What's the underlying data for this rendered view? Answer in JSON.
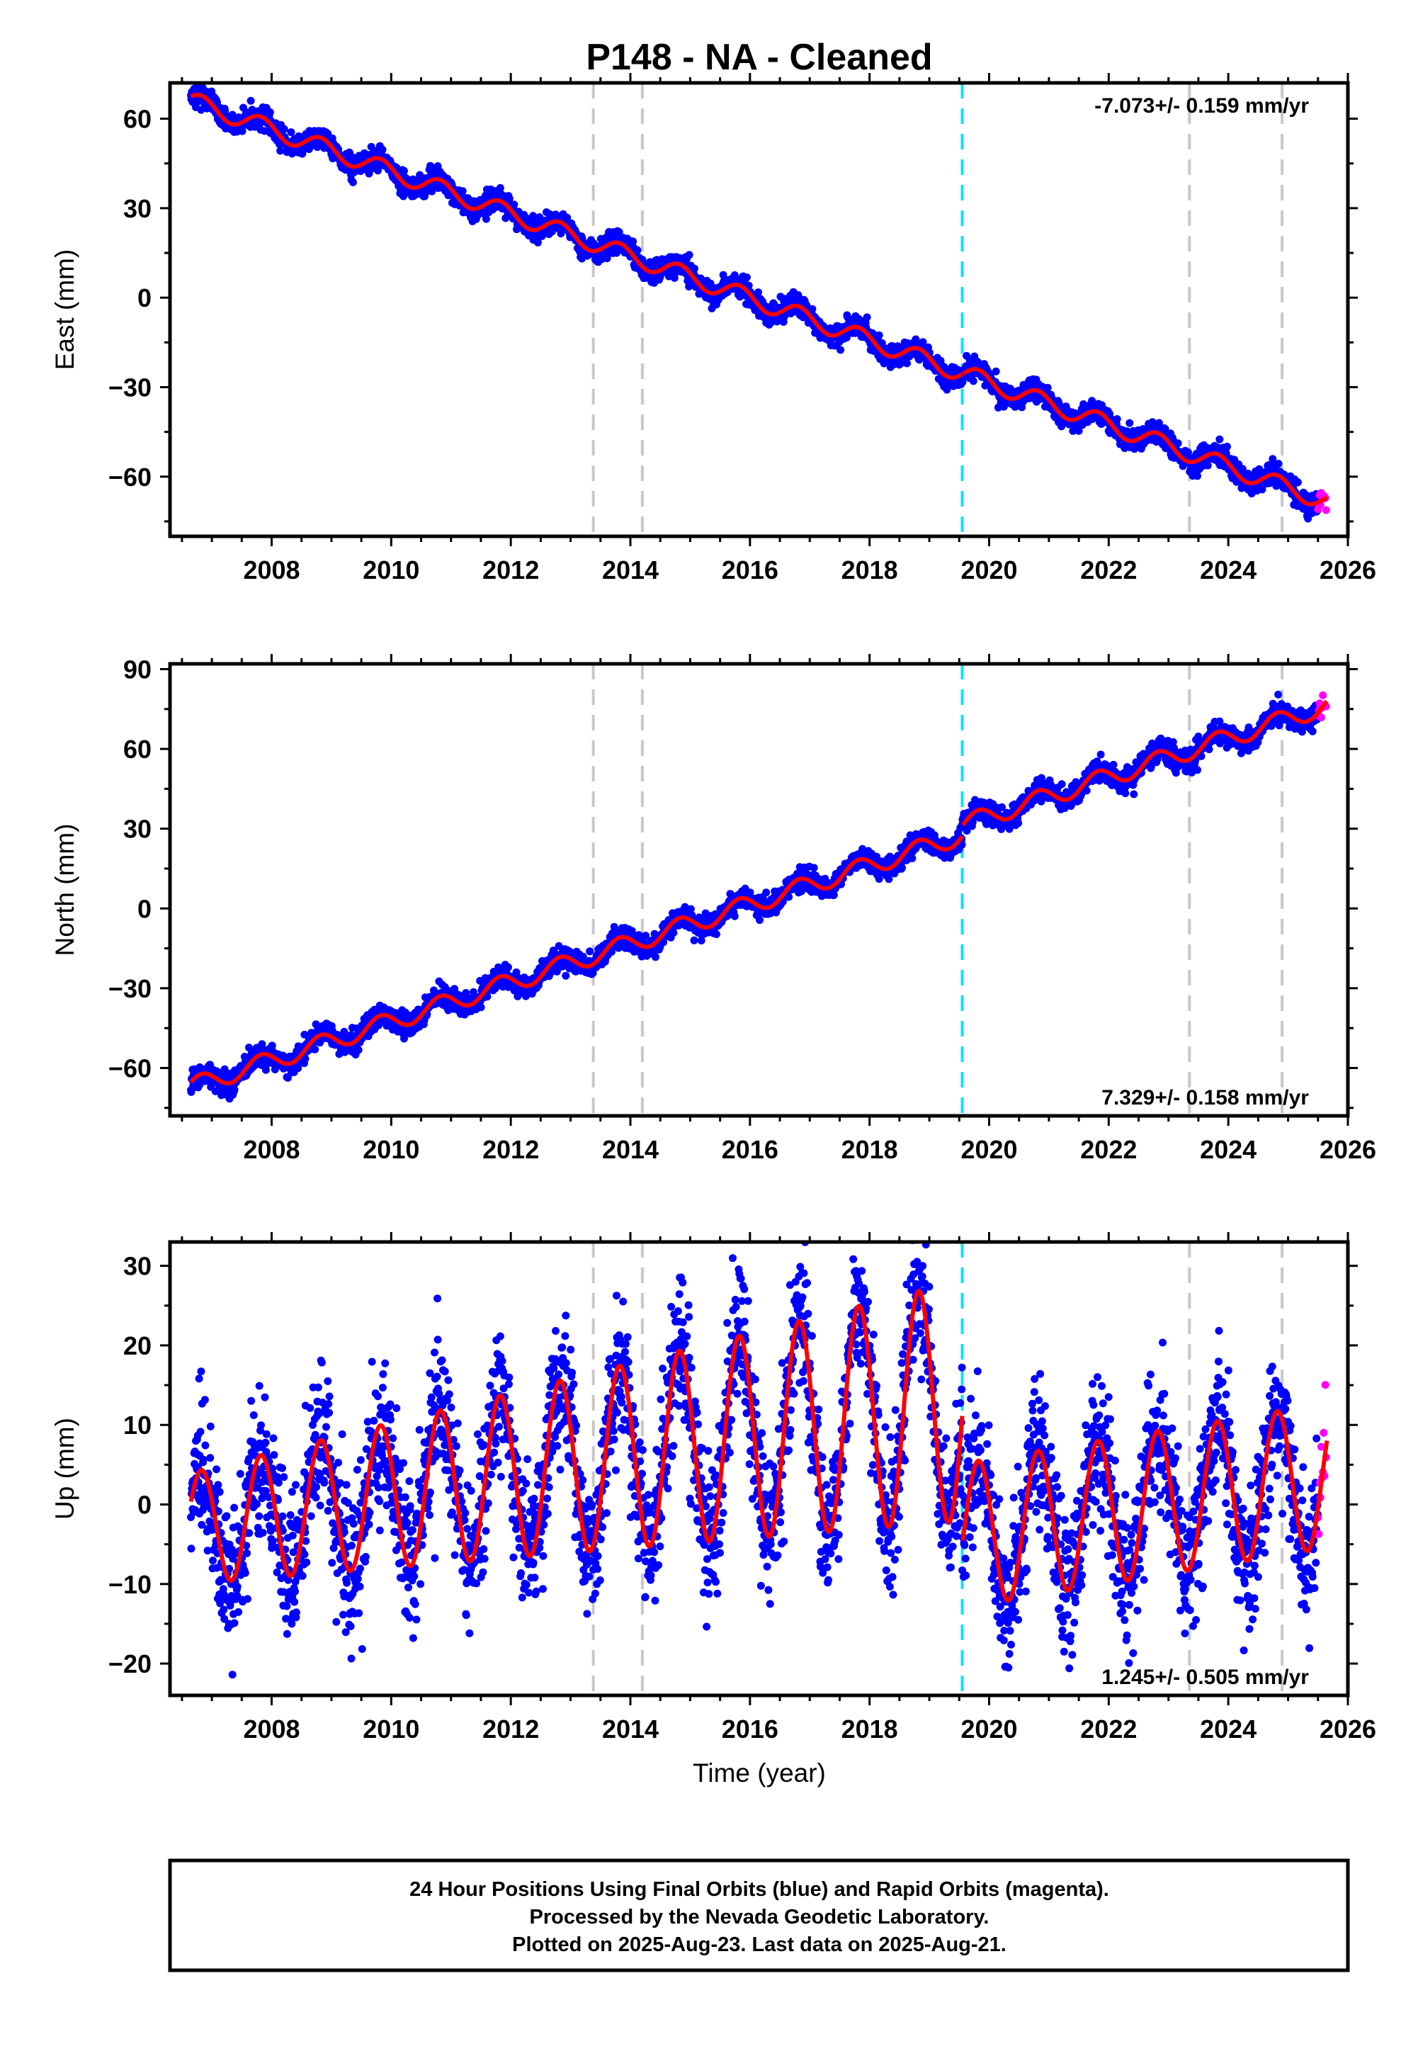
{
  "title": "P148  - NA - Cleaned",
  "colors": {
    "final_orbits": "#0000ff",
    "rapid_orbits": "#ff00ff",
    "model": "#ff0000",
    "event_line": "#c8c8c8",
    "equipment_line": "#00e5ff"
  },
  "x_axis": {
    "label": "Time (year)",
    "ticks": [
      "2008",
      "2010",
      "2012",
      "2014",
      "2016",
      "2018",
      "2020",
      "2022",
      "2024",
      "2026"
    ]
  },
  "chart_data": [
    {
      "type": "scatter",
      "name": "east",
      "ylabel": "East (mm)",
      "xlim": [
        2006.3,
        2026.0
      ],
      "ylim": [
        -80,
        72
      ],
      "yticks": [
        -60,
        -30,
        0,
        30,
        60
      ],
      "rate_text": "-7.073+/- 0.159 mm/yr",
      "rate_position": "top-right",
      "rate": -7.073,
      "rate_sigma": 0.159,
      "offset": 66,
      "annual_amplitude": 3,
      "noise_mm": 1.8,
      "steps": [
        {
          "t": 2019.55,
          "dy": 0
        }
      ],
      "series": [
        {
          "name": "Final Orbits",
          "start": 2006.65,
          "end": 2025.5
        },
        {
          "name": "Rapid Orbits",
          "start": 2025.5,
          "end": 2025.65
        }
      ]
    },
    {
      "type": "scatter",
      "name": "north",
      "ylabel": "North (mm)",
      "xlim": [
        2006.3,
        2026.0
      ],
      "ylim": [
        -78,
        92
      ],
      "yticks": [
        -60,
        -30,
        0,
        30,
        60,
        90
      ],
      "rate_text": "7.329+/- 0.158 mm/yr",
      "rate_position": "bottom-right",
      "rate": 7.329,
      "rate_sigma": 0.158,
      "offset": -67,
      "annual_amplitude": 3.5,
      "noise_mm": 2.0,
      "steps": [
        {
          "t": 2019.55,
          "dy": 4
        }
      ],
      "series": [
        {
          "name": "Final Orbits",
          "start": 2006.65,
          "end": 2025.5
        },
        {
          "name": "Rapid Orbits",
          "start": 2025.5,
          "end": 2025.65
        }
      ]
    },
    {
      "type": "scatter",
      "name": "up",
      "ylabel": "Up (mm)",
      "xlim": [
        2006.3,
        2026.0
      ],
      "ylim": [
        -24,
        33
      ],
      "yticks": [
        -20,
        -10,
        0,
        10,
        20,
        30
      ],
      "rate_text": "1.245+/- 0.505 mm/yr",
      "rate_position": "bottom-right",
      "rate": 1.245,
      "rate_sigma": 0.505,
      "offset": -3,
      "annual_amplitude": 7,
      "noise_mm": 4.5,
      "steps": [
        {
          "t": 2019.55,
          "dy": -17
        }
      ],
      "series": [
        {
          "name": "Final Orbits",
          "start": 2006.65,
          "end": 2025.5
        },
        {
          "name": "Rapid Orbits",
          "start": 2025.5,
          "end": 2025.65
        }
      ]
    }
  ],
  "event_lines": [
    2013.38,
    2014.2,
    2023.35,
    2024.9
  ],
  "equipment_lines": [
    2019.55
  ],
  "footer": {
    "line1": "24 Hour Positions Using Final Orbits (blue) and Rapid Orbits (magenta).",
    "line2": "Processed by the Nevada Geodetic Laboratory.",
    "line3": "Plotted on 2025-Aug-23. Last data on 2025-Aug-21."
  }
}
